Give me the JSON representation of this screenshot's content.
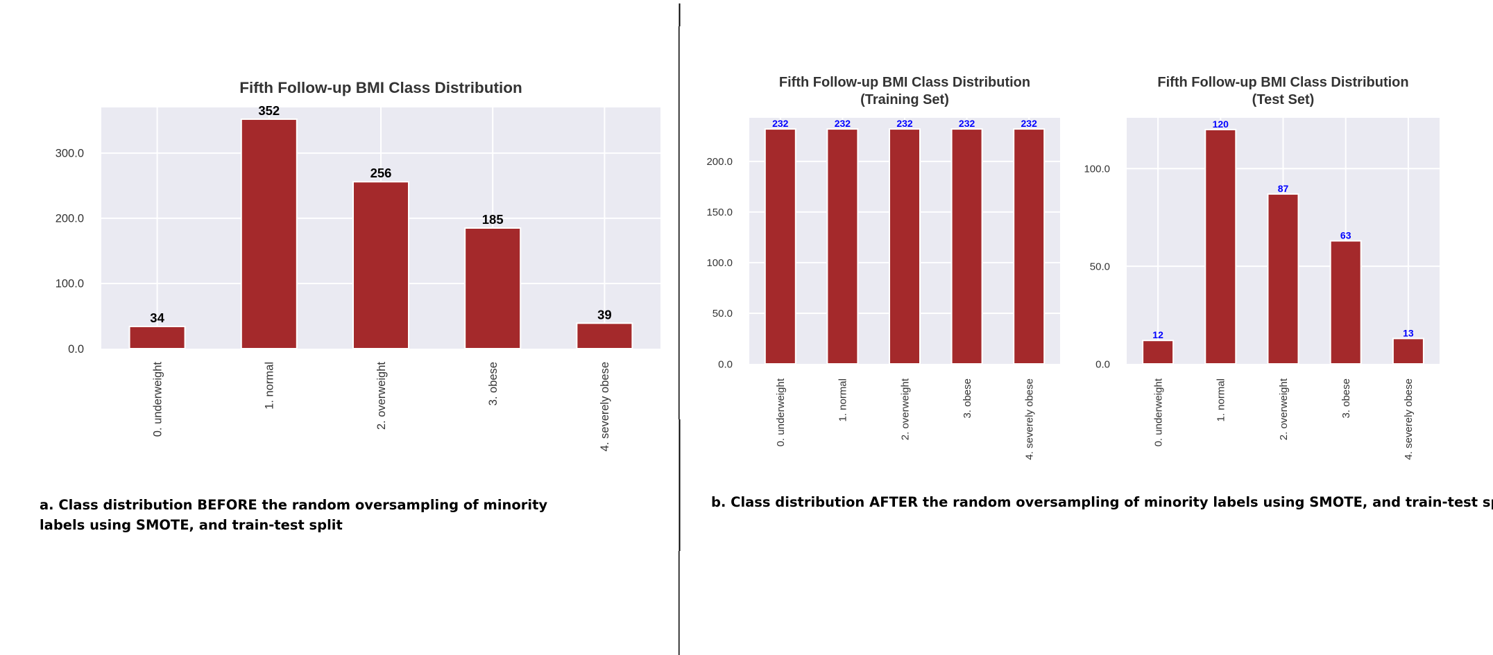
{
  "colors": {
    "bar": "#a4292b",
    "plot_bg": "#eaeaf2",
    "grid": "#ffffff",
    "label_black": "#000000",
    "label_blue": "#0000ff",
    "axis_text": "#333333"
  },
  "chart_data": [
    {
      "type": "bar",
      "title": "Fifth Follow-up BMI Class Distribution",
      "subtitle": "",
      "categories": [
        "0. underweight",
        "1. normal",
        "2. overweight",
        "3. obese",
        "4. severely obese"
      ],
      "values": [
        34,
        352,
        256,
        185,
        39
      ],
      "value_labels": [
        "34",
        "352",
        "256",
        "185",
        "39"
      ],
      "yticks": [
        0,
        100,
        200,
        300
      ],
      "ytick_labels": [
        "0.0",
        "100.0",
        "200.0",
        "300.0"
      ],
      "ylim": [
        0,
        370
      ],
      "grid": true,
      "data_label_color": "black"
    },
    {
      "type": "bar",
      "title": "Fifth Follow-up BMI Class Distribution",
      "subtitle": "(Training Set)",
      "categories": [
        "0. underweight",
        "1. normal",
        "2. overweight",
        "3. obese",
        "4. severely obese"
      ],
      "values": [
        232,
        232,
        232,
        232,
        232
      ],
      "value_labels": [
        "232",
        "232",
        "232",
        "232",
        "232"
      ],
      "yticks": [
        0,
        50,
        100,
        150,
        200
      ],
      "ytick_labels": [
        "0.0",
        "50.0",
        "100.0",
        "150.0",
        "200.0"
      ],
      "ylim": [
        0,
        243
      ],
      "grid": true,
      "data_label_color": "blue"
    },
    {
      "type": "bar",
      "title": "Fifth Follow-up BMI Class Distribution",
      "subtitle": "(Test Set)",
      "categories": [
        "0. underweight",
        "1. normal",
        "2. overweight",
        "3. obese",
        "4. severely obese"
      ],
      "values": [
        12,
        120,
        87,
        63,
        13
      ],
      "value_labels": [
        "12",
        "120",
        "87",
        "63",
        "13"
      ],
      "yticks": [
        0,
        50,
        100
      ],
      "ytick_labels": [
        "0.0",
        "50.0",
        "100.0"
      ],
      "ylim": [
        0,
        126
      ],
      "grid": true,
      "data_label_color": "blue"
    }
  ],
  "captions": {
    "a": "a. Class distribution BEFORE the random oversampling of minority labels using SMOTE, and train-test split",
    "b": "b. Class distribution AFTER the random oversampling of minority labels using SMOTE, and train-test split"
  }
}
